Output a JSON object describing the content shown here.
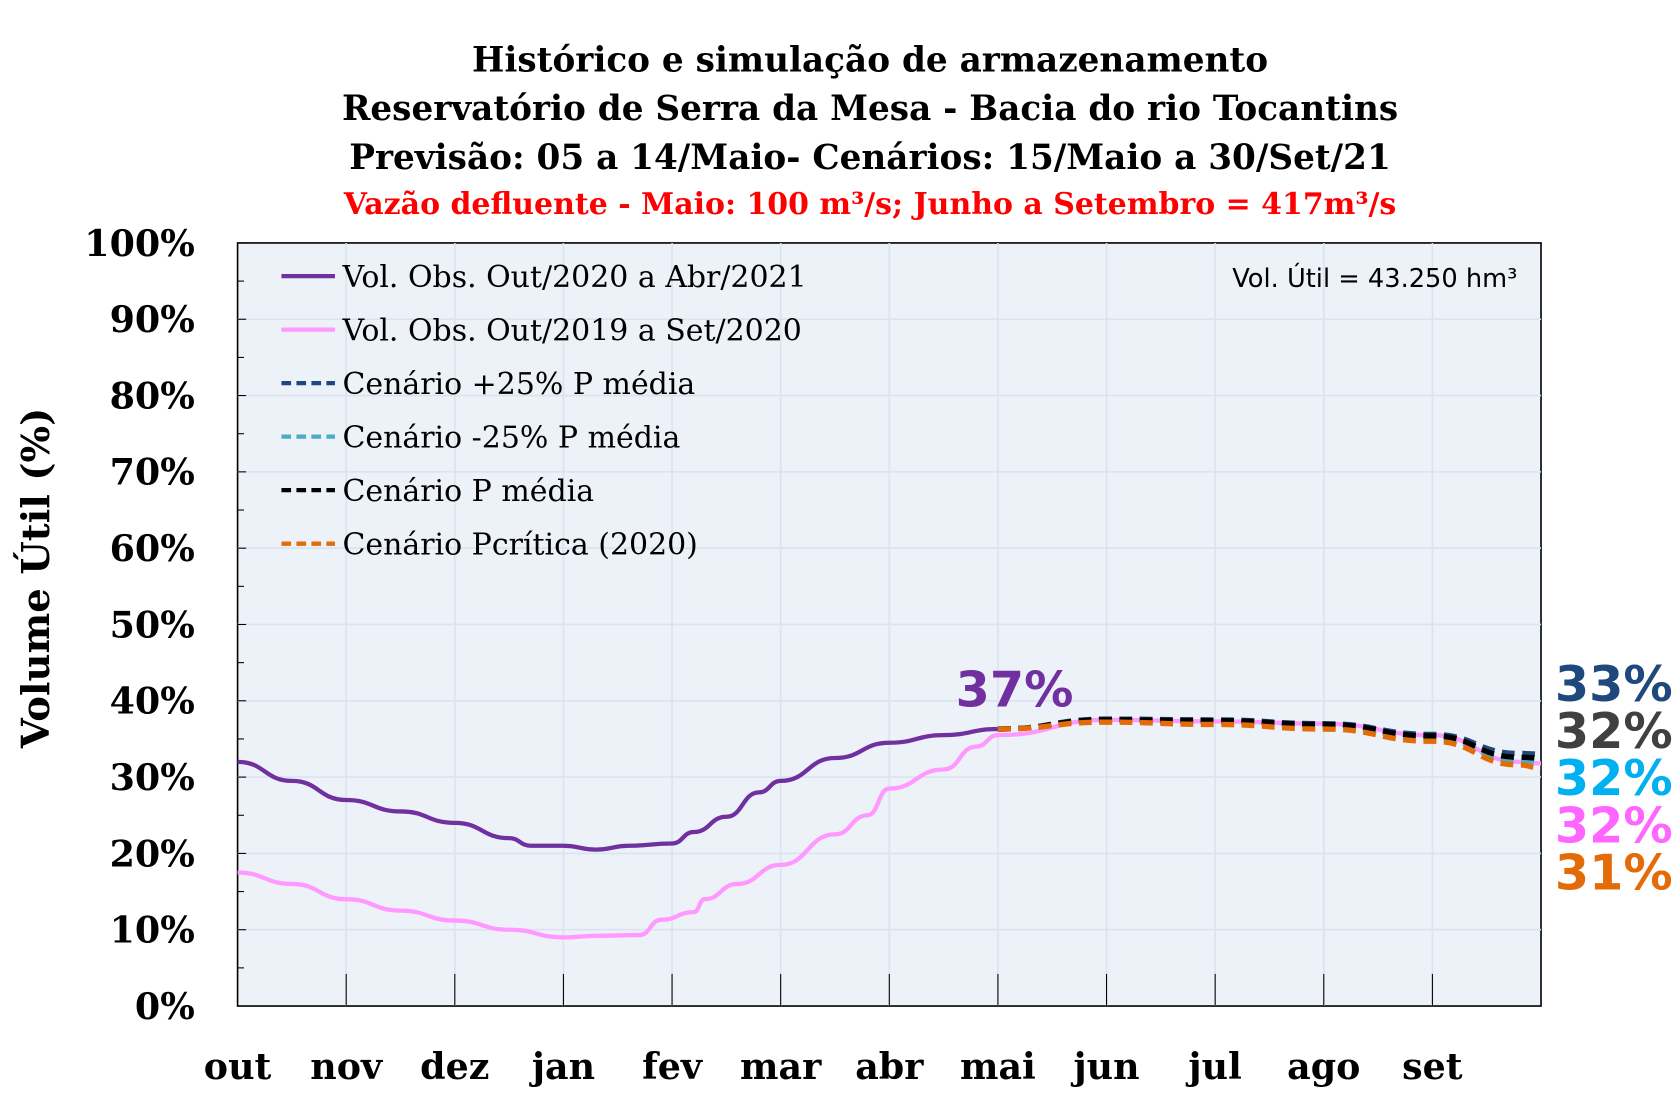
{
  "chart_data": {
    "type": "line",
    "title": "Histórico e simulação de armazenamento",
    "subtitle_lines": [
      "Reservatório de Serra da Mesa - Bacia do rio Tocantins",
      "Previsão: 05 a 14/Maio- Cenários: 15/Maio a 30/Set/21"
    ],
    "subtitle_red": "Vazão defluente - Maio: 100 m³/s; Junho a Setembro = 417m³/s",
    "ylabel": "Volume Útil (%)",
    "xlabel": "",
    "ylim": [
      0,
      100
    ],
    "yticks": [
      "0%",
      "10%",
      "20%",
      "30%",
      "40%",
      "50%",
      "60%",
      "70%",
      "80%",
      "90%",
      "100%"
    ],
    "categories": [
      "out",
      "nov",
      "dez",
      "jan",
      "fev",
      "mar",
      "abr",
      "mai",
      "jun",
      "jul",
      "ago",
      "set"
    ],
    "grid": true,
    "legend_position": "top-left",
    "annotation_top_right": "Vol. Útil  = 43.250 hm³",
    "point_label": {
      "text": "37%",
      "color": "#7030a0"
    },
    "series": [
      {
        "name": "Vol. Obs. Out/2020 a Abr/2021",
        "color": "#7030a0",
        "dash": false,
        "x": [
          0,
          0.5,
          1,
          1.5,
          2,
          2.5,
          2.7,
          3,
          3.3,
          3.6,
          4,
          4.2,
          4.5,
          4.8,
          5,
          5.5,
          6,
          6.5,
          7
        ],
        "y": [
          32,
          29.5,
          27,
          25.5,
          24,
          22,
          21,
          21,
          20.5,
          21,
          21.3,
          22.8,
          24.8,
          28,
          29.5,
          32.5,
          34.5,
          35.5,
          36.3
        ]
      },
      {
        "name": "Vol. Obs. Out/2019 a Set/2020",
        "color": "#ff99ff",
        "dash": false,
        "x": [
          0,
          0.5,
          1,
          1.5,
          2,
          2.5,
          3,
          3.3,
          3.7,
          3.9,
          4.2,
          4.3,
          4.6,
          5,
          5.5,
          5.8,
          6,
          6.5,
          6.8,
          7,
          8,
          9,
          10,
          11,
          11.8,
          12
        ],
        "y": [
          17.5,
          16,
          14,
          12.5,
          11.2,
          10,
          9,
          9.2,
          9.3,
          11.3,
          12.3,
          14,
          16,
          18.5,
          22.5,
          25,
          28.5,
          31,
          34,
          35.5,
          37.5,
          37.3,
          37,
          35.5,
          32,
          31.8
        ]
      },
      {
        "name": "Cenário +25% P média",
        "color": "#1f497d",
        "dash": true,
        "x": [
          7,
          8,
          9,
          10,
          11,
          11.8,
          12
        ],
        "y": [
          36.3,
          37.6,
          37.5,
          37,
          35.6,
          33.1,
          33
        ]
      },
      {
        "name": "Cenário -25% P média",
        "color": "#4bacc6",
        "dash": true,
        "x": [
          7,
          8,
          9,
          10,
          11,
          11.8,
          12
        ],
        "y": [
          36.3,
          37.4,
          37.2,
          36.7,
          35.1,
          32.2,
          32
        ]
      },
      {
        "name": "Cenário P média",
        "color": "#000000",
        "dash": true,
        "x": [
          7,
          8,
          9,
          10,
          11,
          11.8,
          12
        ],
        "y": [
          36.3,
          37.5,
          37.4,
          36.9,
          35.4,
          32.6,
          32.5
        ]
      },
      {
        "name": "Cenário Pcrítica (2020)",
        "color": "#e36c09",
        "dash": true,
        "x": [
          7,
          8,
          9,
          10,
          11,
          11.8,
          12
        ],
        "y": [
          36.3,
          37.2,
          36.9,
          36.3,
          34.7,
          31.6,
          31.2
        ]
      }
    ],
    "end_labels": [
      {
        "text": "33%",
        "color": "#1f497d"
      },
      {
        "text": "32%",
        "color": "#404040"
      },
      {
        "text": "32%",
        "color": "#00b0f0"
      },
      {
        "text": "32%",
        "color": "#ff66ff"
      },
      {
        "text": "31%",
        "color": "#e36c09"
      }
    ]
  }
}
